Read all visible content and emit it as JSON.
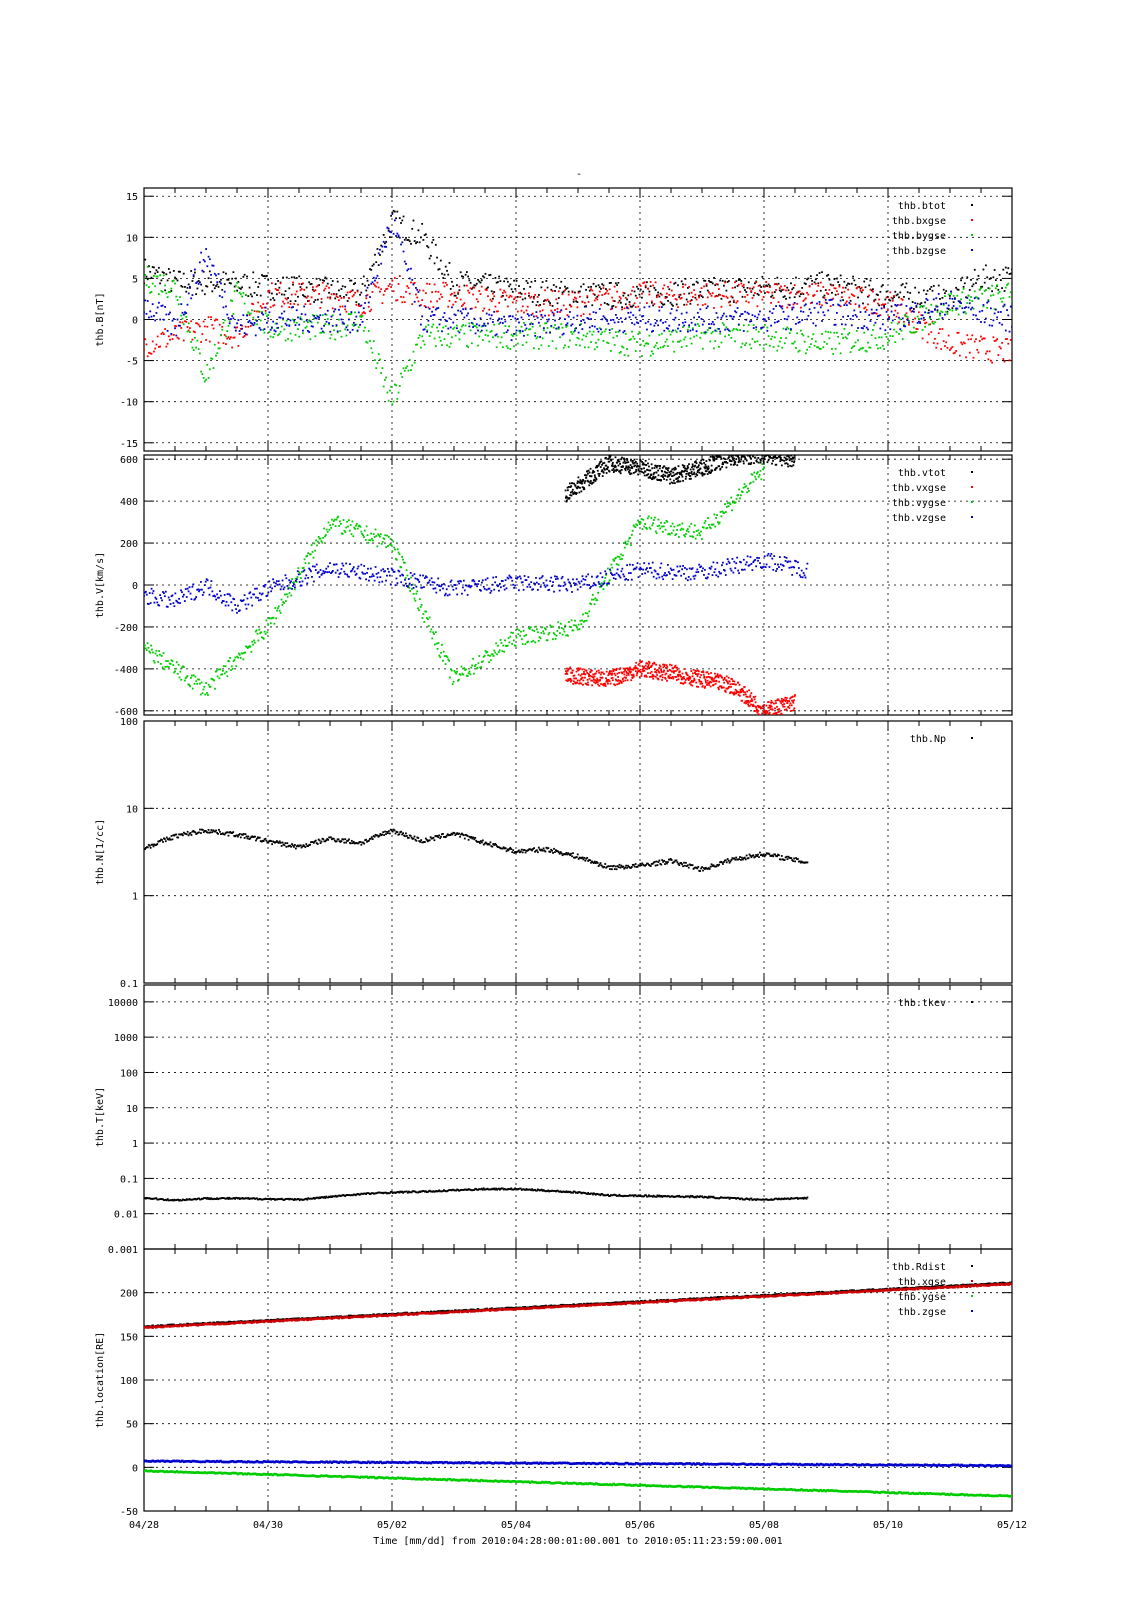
{
  "chart_data": [
    {
      "type": "scatter",
      "panel_id": "b",
      "ylabel": "thb.B[nT]",
      "ylim": [
        -16,
        16
      ],
      "yscale": "linear",
      "yticks": [
        -15,
        -10,
        -5,
        0,
        5,
        10,
        15
      ],
      "ytick_labels": [
        "-15",
        "-10",
        "-5",
        "0",
        "5",
        "10",
        "15"
      ],
      "grid": true,
      "legend": "top-right",
      "series": [
        {
          "name": "thb.btot",
          "color": "#000000",
          "x": [
            0,
            0.5,
            1.2,
            2,
            3,
            3.5,
            4,
            4.5,
            5,
            6,
            7,
            8,
            9,
            10,
            11,
            12,
            13,
            13.5,
            14
          ],
          "y": [
            6,
            4.5,
            4.5,
            4,
            3.5,
            3,
            12,
            10,
            4.5,
            3.5,
            3,
            3,
            3.5,
            3.8,
            4.2,
            3,
            2.5,
            5,
            5
          ]
        },
        {
          "name": "thb.bxgse",
          "color": "#ff0000",
          "x": [
            0,
            0.5,
            1,
            1.5,
            2,
            3,
            3.5,
            4,
            4.5,
            5,
            6,
            7,
            8,
            9,
            10,
            11,
            12,
            13,
            14
          ],
          "y": [
            -3,
            -2,
            -1,
            -2,
            3,
            3,
            2,
            4,
            3,
            3,
            2,
            2,
            3,
            3,
            3,
            3,
            2,
            -3,
            -4
          ]
        },
        {
          "name": "thb.bygse",
          "color": "#00cc00",
          "x": [
            0,
            0.5,
            1,
            1.5,
            2,
            3,
            3.5,
            4,
            4.5,
            5,
            6,
            7,
            8,
            9,
            10,
            11,
            12,
            13,
            14
          ],
          "y": [
            5,
            4,
            -7,
            3,
            -1,
            -1,
            0,
            -10,
            -2,
            -2,
            -2,
            -2,
            -3,
            -2,
            -2,
            -3,
            -2,
            2,
            3
          ]
        },
        {
          "name": "thb.bzgse",
          "color": "#0000cc",
          "x": [
            0,
            0.5,
            1,
            1.5,
            2,
            3,
            3.5,
            4,
            4.5,
            5,
            6,
            7,
            8,
            9,
            10,
            11,
            12,
            13,
            14
          ],
          "y": [
            2,
            -1,
            8,
            -1,
            0,
            0,
            0,
            12,
            0,
            0,
            -1,
            0,
            0,
            0,
            0,
            1,
            0,
            2,
            0
          ]
        }
      ]
    },
    {
      "type": "scatter",
      "panel_id": "v",
      "ylabel": "thb.V[km/s]",
      "ylim": [
        -620,
        620
      ],
      "yscale": "linear",
      "yticks": [
        -600,
        -400,
        -200,
        0,
        200,
        400,
        600
      ],
      "ytick_labels": [
        "-600",
        "-400",
        "-200",
        "0",
        "200",
        "400",
        "600"
      ],
      "grid": true,
      "legend": "top-right",
      "series": [
        {
          "name": "thb.vtot",
          "color": "#000000",
          "x": [
            6.8,
            7.5,
            8,
            8.5,
            9,
            9.5,
            10,
            10.5
          ],
          "y": [
            430,
            580,
            560,
            520,
            560,
            610,
            620,
            600
          ]
        },
        {
          "name": "thb.vxgse",
          "color": "#ff0000",
          "x": [
            6.8,
            7.5,
            8,
            8.5,
            9,
            9.5,
            10,
            10.5
          ],
          "y": [
            -430,
            -450,
            -400,
            -420,
            -450,
            -480,
            -600,
            -560
          ]
        },
        {
          "name": "thb.vygse",
          "color": "#00cc00",
          "x": [
            0,
            1,
            2,
            3,
            4,
            5,
            6,
            7,
            8,
            9,
            10
          ],
          "y": [
            -300,
            -500,
            -200,
            300,
            200,
            -450,
            -250,
            -200,
            300,
            250,
            550
          ]
        },
        {
          "name": "thb.vzgse",
          "color": "#0000cc",
          "x": [
            0,
            0.5,
            1,
            1.5,
            2,
            3,
            4,
            5,
            6,
            7,
            8,
            9,
            10,
            10.7
          ],
          "y": [
            -50,
            -80,
            0,
            -100,
            -20,
            80,
            40,
            -20,
            10,
            0,
            70,
            60,
            120,
            70
          ]
        }
      ]
    },
    {
      "type": "scatter",
      "panel_id": "n",
      "ylabel": "thb.N[1/cc]",
      "ylim": [
        0.1,
        100
      ],
      "yscale": "log",
      "yticks": [
        0.1,
        1,
        10,
        100
      ],
      "ytick_labels": [
        "0.1",
        "1",
        "10",
        "100"
      ],
      "grid": true,
      "legend": "top-right",
      "series": [
        {
          "name": "thb.Np",
          "color": "#000000",
          "x": [
            0,
            0.5,
            1,
            1.5,
            2,
            2.5,
            3,
            3.5,
            4,
            4.5,
            5,
            5.5,
            6,
            6.5,
            7,
            7.5,
            8,
            8.5,
            9,
            9.5,
            10,
            10.7
          ],
          "y": [
            3.5,
            4.8,
            5.6,
            5.0,
            4.2,
            3.6,
            4.5,
            4.0,
            5.6,
            4.2,
            5.2,
            4.0,
            3.2,
            3.4,
            2.8,
            2.1,
            2.2,
            2.5,
            2.0,
            2.6,
            3.0,
            2.4
          ]
        }
      ]
    },
    {
      "type": "scatter",
      "panel_id": "t",
      "ylabel": "thb.T[keV]",
      "ylim": [
        0.001,
        30000
      ],
      "yscale": "log",
      "yticks": [
        0.001,
        0.01,
        0.1,
        1,
        10,
        100,
        1000,
        10000
      ],
      "ytick_labels": [
        "0.001",
        "0.01",
        "0.1",
        "1",
        "10",
        "100",
        "1000",
        "10000"
      ],
      "grid": true,
      "legend": "top-right",
      "series": [
        {
          "name": "thb.tkev",
          "color": "#000000",
          "x": [
            0,
            0.5,
            1,
            1.5,
            2,
            2.5,
            3,
            3.5,
            4,
            4.5,
            5,
            5.5,
            6,
            6.5,
            7,
            7.5,
            8,
            8.5,
            9,
            9.5,
            10,
            10.7
          ],
          "y": [
            0.028,
            0.024,
            0.027,
            0.027,
            0.026,
            0.025,
            0.03,
            0.036,
            0.04,
            0.042,
            0.046,
            0.05,
            0.05,
            0.045,
            0.04,
            0.033,
            0.032,
            0.031,
            0.03,
            0.027,
            0.025,
            0.028
          ]
        }
      ]
    },
    {
      "type": "line",
      "panel_id": "loc",
      "ylabel": "thb.location[RE]",
      "ylim": [
        -50,
        250
      ],
      "yscale": "linear",
      "yticks": [
        -50,
        0,
        50,
        100,
        150,
        200
      ],
      "ytick_labels": [
        "-50",
        "0",
        "50",
        "100",
        "150",
        "200"
      ],
      "grid": true,
      "legend": "top-right",
      "series": [
        {
          "name": "thb.Rdist",
          "color": "#000000",
          "x": [
            0,
            14
          ],
          "y": [
            161,
            211
          ]
        },
        {
          "name": "thb.xgse",
          "color": "#cc0000",
          "x": [
            0,
            14
          ],
          "y": [
            160,
            210
          ]
        },
        {
          "name": "thb.ygse",
          "color": "#00cc00",
          "x": [
            0,
            14
          ],
          "y": [
            -4,
            -33
          ]
        },
        {
          "name": "thb.zgse",
          "color": "#0000cc",
          "x": [
            0,
            14
          ],
          "y": [
            7,
            2
          ]
        }
      ]
    }
  ],
  "x_axis": {
    "range": [
      "04/28",
      "05/12"
    ],
    "ticks": [
      0,
      2,
      4,
      6,
      8,
      10,
      12,
      14
    ],
    "tick_labels": [
      "04/28",
      "04/30",
      "05/02",
      "05/04",
      "05/06",
      "05/08",
      "05/10",
      "05/12"
    ],
    "label": "Time [mm/dd]  from 2010:04:28:00:01:00.001  to  2010:05:11:23:59:00.001"
  },
  "figure": {
    "title": "-"
  }
}
